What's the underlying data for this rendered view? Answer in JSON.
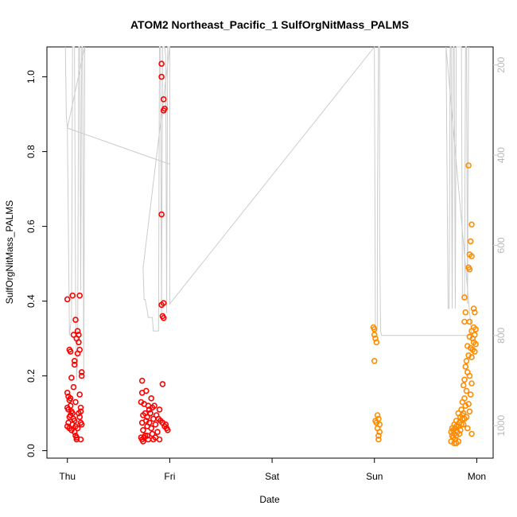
{
  "chart_data": {
    "type": "scatter",
    "title": "ATOM2 Northeast_Pacific_1 SulfOrgNitMass_PALMS",
    "xlabel": "Date",
    "ylabel": "SulfOrgNitMass_PALMS",
    "x_ticks": [
      "Thu",
      "Fri",
      "Sat",
      "Sun",
      "Mon"
    ],
    "x_range_days": [
      -0.2,
      4.16
    ],
    "ylim": [
      -0.02,
      1.08
    ],
    "y_ticks": [
      "0.0",
      "0.2",
      "0.4",
      "0.6",
      "0.8",
      "1.0"
    ],
    "y_tick_values": [
      0,
      0.2,
      0.4,
      0.6,
      0.8,
      1.0
    ],
    "right_axis": {
      "ticks": [
        "200",
        "400",
        "600",
        "800",
        "1000"
      ],
      "tick_values": [
        200,
        400,
        600,
        800,
        1000
      ],
      "range": [
        1072,
        160
      ],
      "color": "#c8c8c8"
    },
    "grid": false,
    "colors": {
      "red": "#ff0000",
      "orange": "#ff8c00",
      "gray": "#cccccc"
    },
    "series": [
      {
        "color": "#ff0000",
        "points": [
          [
            0.0,
            0.405
          ],
          [
            0.02,
            0.27
          ],
          [
            0.03,
            0.265
          ],
          [
            0.05,
            0.415
          ],
          [
            0.12,
            0.415
          ],
          [
            0.08,
            0.35
          ],
          [
            0.1,
            0.32
          ],
          [
            0.11,
            0.31
          ],
          [
            0.09,
            0.3
          ],
          [
            0.11,
            0.29
          ],
          [
            0.06,
            0.31
          ],
          [
            0.07,
            0.24
          ],
          [
            0.07,
            0.23
          ],
          [
            0.12,
            0.27
          ],
          [
            0.1,
            0.26
          ],
          [
            0.14,
            0.21
          ],
          [
            0.14,
            0.2
          ],
          [
            0.04,
            0.195
          ],
          [
            0.06,
            0.17
          ],
          [
            0.0,
            0.155
          ],
          [
            0.01,
            0.145
          ],
          [
            0.02,
            0.135
          ],
          [
            0.12,
            0.15
          ],
          [
            0.08,
            0.13
          ],
          [
            0.03,
            0.12
          ],
          [
            0.0,
            0.115
          ],
          [
            0.01,
            0.11
          ],
          [
            0.04,
            0.105
          ],
          [
            0.05,
            0.1
          ],
          [
            0.13,
            0.115
          ],
          [
            0.13,
            0.105
          ],
          [
            0.03,
            0.095
          ],
          [
            0.02,
            0.09
          ],
          [
            0.06,
            0.085
          ],
          [
            0.07,
            0.08
          ],
          [
            0.01,
            0.075
          ],
          [
            0.05,
            0.07
          ],
          [
            0.13,
            0.075
          ],
          [
            0.14,
            0.07
          ],
          [
            0.0,
            0.065
          ],
          [
            0.02,
            0.06
          ],
          [
            0.04,
            0.055
          ],
          [
            0.08,
            0.065
          ],
          [
            0.1,
            0.06
          ],
          [
            0.07,
            0.05
          ],
          [
            0.08,
            0.04
          ],
          [
            0.09,
            0.035
          ],
          [
            0.09,
            0.03
          ],
          [
            0.13,
            0.03
          ],
          [
            0.11,
            0.1
          ],
          [
            0.12,
            0.09
          ],
          [
            0.03,
            0.14
          ],
          [
            0.92,
            1.035
          ],
          [
            0.92,
            1.0
          ],
          [
            0.94,
            0.94
          ],
          [
            0.95,
            0.915
          ],
          [
            0.94,
            0.91
          ],
          [
            0.92,
            0.632
          ],
          [
            0.92,
            0.39
          ],
          [
            0.94,
            0.395
          ],
          [
            0.93,
            0.36
          ],
          [
            0.94,
            0.355
          ],
          [
            0.73,
            0.187
          ],
          [
            0.93,
            0.178
          ],
          [
            0.77,
            0.16
          ],
          [
            0.73,
            0.155
          ],
          [
            0.82,
            0.14
          ],
          [
            0.72,
            0.13
          ],
          [
            0.75,
            0.125
          ],
          [
            0.79,
            0.12
          ],
          [
            0.83,
            0.115
          ],
          [
            0.8,
            0.11
          ],
          [
            0.9,
            0.11
          ],
          [
            0.76,
            0.1
          ],
          [
            0.81,
            0.1
          ],
          [
            0.87,
            0.095
          ],
          [
            0.74,
            0.095
          ],
          [
            0.78,
            0.09
          ],
          [
            0.84,
            0.085
          ],
          [
            0.89,
            0.085
          ],
          [
            0.91,
            0.08
          ],
          [
            0.77,
            0.08
          ],
          [
            0.73,
            0.075
          ],
          [
            0.8,
            0.075
          ],
          [
            0.86,
            0.07
          ],
          [
            0.93,
            0.075
          ],
          [
            0.96,
            0.07
          ],
          [
            0.95,
            0.065
          ],
          [
            0.78,
            0.065
          ],
          [
            0.82,
            0.06
          ],
          [
            0.97,
            0.06
          ],
          [
            0.98,
            0.055
          ],
          [
            0.74,
            0.055
          ],
          [
            0.88,
            0.05
          ],
          [
            0.83,
            0.045
          ],
          [
            0.76,
            0.04
          ],
          [
            0.78,
            0.04
          ],
          [
            0.72,
            0.035
          ],
          [
            0.75,
            0.035
          ],
          [
            0.86,
            0.035
          ],
          [
            0.73,
            0.03
          ],
          [
            0.79,
            0.03
          ],
          [
            0.84,
            0.03
          ],
          [
            0.9,
            0.03
          ],
          [
            0.74,
            0.025
          ],
          [
            0.81,
            0.1
          ],
          [
            0.85,
            0.12
          ]
        ]
      },
      {
        "color": "#ff8c00",
        "points": [
          [
            2.99,
            0.33
          ],
          [
            3.0,
            0.325
          ],
          [
            3.0,
            0.31
          ],
          [
            3.01,
            0.3
          ],
          [
            3.02,
            0.29
          ],
          [
            3.0,
            0.24
          ],
          [
            3.03,
            0.095
          ],
          [
            3.04,
            0.085
          ],
          [
            3.01,
            0.08
          ],
          [
            3.02,
            0.075
          ],
          [
            3.05,
            0.07
          ],
          [
            3.03,
            0.06
          ],
          [
            3.05,
            0.05
          ],
          [
            3.04,
            0.04
          ],
          [
            3.04,
            0.03
          ],
          [
            3.92,
            0.763
          ],
          [
            3.95,
            0.605
          ],
          [
            3.94,
            0.56
          ],
          [
            3.93,
            0.525
          ],
          [
            3.95,
            0.52
          ],
          [
            3.92,
            0.49
          ],
          [
            3.93,
            0.485
          ],
          [
            3.88,
            0.41
          ],
          [
            3.97,
            0.38
          ],
          [
            3.98,
            0.37
          ],
          [
            3.89,
            0.37
          ],
          [
            3.93,
            0.345
          ],
          [
            3.88,
            0.345
          ],
          [
            3.97,
            0.33
          ],
          [
            3.99,
            0.325
          ],
          [
            3.95,
            0.32
          ],
          [
            3.98,
            0.31
          ],
          [
            3.93,
            0.305
          ],
          [
            3.96,
            0.3
          ],
          [
            3.97,
            0.29
          ],
          [
            3.99,
            0.285
          ],
          [
            3.91,
            0.28
          ],
          [
            3.94,
            0.275
          ],
          [
            3.96,
            0.27
          ],
          [
            3.98,
            0.265
          ],
          [
            3.92,
            0.255
          ],
          [
            3.95,
            0.25
          ],
          [
            3.9,
            0.24
          ],
          [
            3.89,
            0.225
          ],
          [
            3.91,
            0.21
          ],
          [
            3.93,
            0.2
          ],
          [
            3.88,
            0.19
          ],
          [
            3.95,
            0.18
          ],
          [
            3.87,
            0.175
          ],
          [
            3.9,
            0.16
          ],
          [
            3.94,
            0.15
          ],
          [
            3.88,
            0.14
          ],
          [
            3.86,
            0.13
          ],
          [
            3.92,
            0.125
          ],
          [
            3.89,
            0.12
          ],
          [
            3.85,
            0.11
          ],
          [
            3.93,
            0.105
          ],
          [
            3.87,
            0.1
          ],
          [
            3.82,
            0.1
          ],
          [
            3.86,
            0.095
          ],
          [
            3.9,
            0.09
          ],
          [
            3.84,
            0.09
          ],
          [
            3.88,
            0.085
          ],
          [
            3.8,
            0.08
          ],
          [
            3.83,
            0.075
          ],
          [
            3.85,
            0.07
          ],
          [
            3.87,
            0.07
          ],
          [
            3.78,
            0.07
          ],
          [
            3.8,
            0.065
          ],
          [
            3.82,
            0.065
          ],
          [
            3.76,
            0.06
          ],
          [
            3.79,
            0.06
          ],
          [
            3.84,
            0.055
          ],
          [
            3.77,
            0.055
          ],
          [
            3.81,
            0.05
          ],
          [
            3.75,
            0.05
          ],
          [
            3.78,
            0.045
          ],
          [
            3.83,
            0.045
          ],
          [
            3.76,
            0.04
          ],
          [
            3.8,
            0.04
          ],
          [
            3.95,
            0.045
          ],
          [
            3.77,
            0.035
          ],
          [
            3.79,
            0.03
          ],
          [
            3.75,
            0.025
          ],
          [
            3.78,
            0.02
          ],
          [
            3.8,
            0.02
          ],
          [
            3.82,
            0.025
          ],
          [
            3.86,
            0.085
          ],
          [
            3.91,
            0.06
          ]
        ]
      }
    ],
    "altitude_line": {
      "color": "#cccccc",
      "points": [
        [
          -0.02,
          160
        ],
        [
          -0.01,
          315
        ],
        [
          0.0,
          340
        ],
        [
          0.02,
          800
        ],
        [
          0.03,
          780
        ],
        [
          0.04,
          760
        ],
        [
          0.05,
          160
        ],
        [
          0.07,
          160
        ],
        [
          0.08,
          700
        ],
        [
          0.09,
          900
        ],
        [
          0.1,
          850
        ],
        [
          0.11,
          160
        ],
        [
          0.12,
          160
        ],
        [
          0.13,
          700
        ],
        [
          0.14,
          160
        ],
        [
          0.15,
          160
        ],
        [
          0.16,
          900
        ],
        [
          0.17,
          160
        ],
        [
          0.0,
          340
        ],
        [
          1.0,
          420
        ],
        [
          1.0,
          160
        ],
        [
          0.74,
          650
        ],
        [
          0.75,
          720
        ],
        [
          0.76,
          720
        ],
        [
          0.78,
          745
        ],
        [
          0.79,
          760
        ],
        [
          0.8,
          760
        ],
        [
          0.82,
          760
        ],
        [
          0.83,
          760
        ],
        [
          0.84,
          790
        ],
        [
          0.86,
          790
        ],
        [
          0.89,
          790
        ],
        [
          0.9,
          160
        ],
        [
          0.91,
          160
        ],
        [
          0.92,
          750
        ],
        [
          0.93,
          160
        ],
        [
          0.95,
          160
        ],
        [
          0.96,
          180
        ],
        [
          0.97,
          750
        ],
        [
          0.98,
          160
        ],
        [
          1.0,
          160
        ],
        [
          1.0,
          730
        ],
        [
          3.0,
          160
        ],
        [
          3.01,
          790
        ],
        [
          3.03,
          780
        ],
        [
          3.03,
          480
        ],
        [
          3.04,
          160
        ],
        [
          3.05,
          160
        ],
        [
          3.05,
          560
        ],
        [
          3.06,
          790
        ],
        [
          3.07,
          800
        ],
        [
          3.8,
          800
        ],
        [
          3.85,
          800
        ],
        [
          3.95,
          800
        ],
        [
          3.7,
          160
        ],
        [
          3.72,
          740
        ],
        [
          3.73,
          740
        ],
        [
          3.74,
          160
        ],
        [
          3.75,
          160
        ],
        [
          3.76,
          740
        ],
        [
          3.77,
          160
        ],
        [
          3.78,
          160
        ],
        [
          3.79,
          740
        ],
        [
          3.8,
          160
        ],
        [
          3.85,
          160
        ],
        [
          3.86,
          720
        ],
        [
          3.88,
          720
        ],
        [
          3.89,
          160
        ],
        [
          3.9,
          160
        ],
        [
          3.91,
          730
        ],
        [
          3.92,
          160
        ]
      ]
    }
  }
}
